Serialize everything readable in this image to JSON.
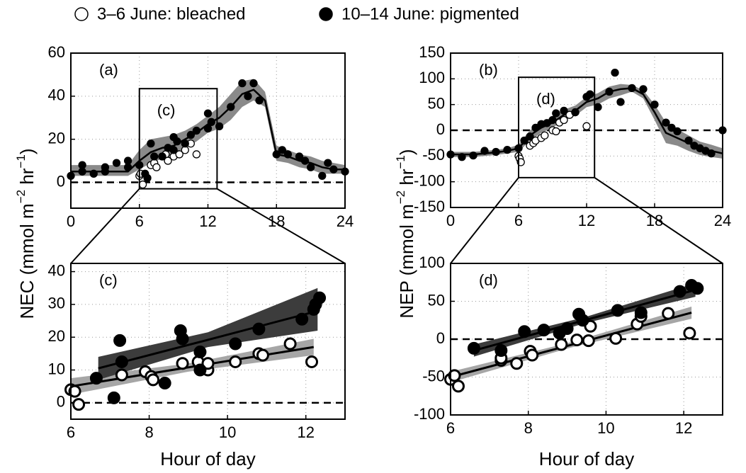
{
  "chart_data": [
    {
      "type": "scatter",
      "panel_label": "(a)",
      "ylabel": [
        "NEC (mmol m",
        "−2",
        " hr",
        "−1",
        ")"
      ],
      "xlim": [
        0,
        24
      ],
      "ylim": [
        -12,
        60
      ],
      "xticks": [
        0,
        6,
        12,
        18,
        24
      ],
      "yticks": [
        0,
        20,
        40,
        60
      ],
      "grid": true,
      "zero_line": true,
      "series": [
        {
          "name": "3–6 June: bleached",
          "color": "#ffffff",
          "marker": "open",
          "x": [
            6,
            6.1,
            6.3,
            7,
            7.3,
            7.5,
            8,
            8.3,
            8.5,
            9,
            9.5,
            10,
            10.5,
            11
          ],
          "values": [
            3,
            4,
            -1,
            8,
            9,
            7,
            12,
            13,
            10,
            12,
            13,
            15,
            18,
            13
          ]
        },
        {
          "name": "10–14 June: pigmented",
          "color": "#000000",
          "marker": "filled",
          "x": [
            0,
            1,
            1,
            2,
            3,
            3,
            4,
            5,
            5,
            6,
            6.5,
            6.7,
            7,
            7.3,
            8,
            8.5,
            9,
            9,
            9.3,
            10,
            10.5,
            11,
            12,
            12,
            12.3,
            13,
            14,
            15,
            15.5,
            16,
            16.5,
            18,
            18.5,
            19,
            20,
            20.5,
            21,
            22,
            22.5,
            23,
            24
          ],
          "values": [
            3,
            8,
            5,
            4,
            7,
            5,
            9,
            10,
            7,
            8,
            4,
            2,
            18,
            12,
            12,
            16,
            15,
            21,
            19,
            18,
            22,
            24,
            32,
            25,
            28,
            26,
            35,
            46,
            40,
            46,
            38,
            13,
            15,
            13,
            12,
            10,
            7,
            3,
            9,
            6,
            5
          ]
        }
      ],
      "fit": [
        {
          "color": "#000000",
          "band_color": "#8a8a8a",
          "x": [
            0,
            2,
            4,
            5,
            6,
            7,
            8,
            9,
            10,
            11,
            12,
            13,
            14,
            15,
            16,
            17,
            18,
            19,
            20,
            21,
            22,
            23,
            24
          ],
          "values": [
            5,
            5,
            5,
            5,
            10,
            14,
            16,
            17,
            20,
            23,
            27,
            30,
            35,
            41,
            43,
            38,
            13,
            12,
            10,
            9,
            7,
            6,
            6
          ],
          "lower": [
            3,
            3,
            3,
            3,
            6,
            9,
            11,
            13,
            16,
            19,
            23,
            25,
            29,
            35,
            38,
            35,
            10,
            9,
            7,
            6,
            4,
            4,
            4
          ],
          "upper": [
            8,
            8,
            8,
            8,
            15,
            20,
            21,
            22,
            24,
            27,
            31,
            35,
            41,
            47,
            48,
            42,
            17,
            15,
            13,
            12,
            10,
            9,
            8
          ]
        }
      ],
      "zoom_box": {
        "x": [
          6,
          12.8
        ],
        "y": [
          -3,
          43.5
        ],
        "label": "(c)"
      }
    },
    {
      "type": "scatter",
      "panel_label": "(b)",
      "ylabel": [
        "NEP (mmol m",
        "−2",
        " hr",
        "−1",
        ")"
      ],
      "xlim": [
        0,
        24
      ],
      "ylim": [
        -150,
        150
      ],
      "xticks": [
        0,
        6,
        12,
        18,
        24
      ],
      "yticks": [
        -150,
        -100,
        -50,
        0,
        50,
        100,
        150
      ],
      "grid": true,
      "zero_line": true,
      "series": [
        {
          "color": "#ffffff",
          "marker": "open",
          "x": [
            6,
            6.1,
            6.2,
            7,
            7.3,
            7.5,
            8,
            8.3,
            9,
            9.3,
            9.6,
            10,
            10.5,
            11,
            12
          ],
          "values": [
            -50,
            -55,
            -62,
            -30,
            -25,
            -20,
            -15,
            -10,
            0,
            -2,
            15,
            20,
            30,
            35,
            8
          ]
        },
        {
          "color": "#000000",
          "marker": "filled",
          "x": [
            0,
            1,
            2,
            3,
            4,
            5,
            6,
            6.5,
            7,
            7.5,
            8,
            8.5,
            9,
            9.3,
            10,
            11,
            12,
            12.3,
            13,
            14,
            14.5,
            15,
            16,
            17,
            18,
            19,
            19.5,
            20,
            21,
            21.5,
            22,
            22.5,
            23,
            24
          ],
          "values": [
            -47,
            -52,
            -49,
            -40,
            -42,
            -38,
            -35,
            -20,
            -12,
            5,
            12,
            14,
            20,
            33,
            38,
            35,
            65,
            70,
            45,
            75,
            112,
            55,
            82,
            80,
            50,
            15,
            5,
            -2,
            -20,
            -30,
            -35,
            -40,
            -45,
            0
          ]
        }
      ],
      "fit": [
        {
          "color": "#000000",
          "band_color": "#8a8a8a",
          "x": [
            0,
            2,
            4,
            5,
            6,
            7,
            8,
            9,
            10,
            11,
            12,
            13,
            14,
            15,
            16,
            17,
            18,
            19,
            20,
            21,
            22,
            23,
            24
          ],
          "values": [
            -47,
            -47,
            -43,
            -40,
            -35,
            -10,
            5,
            15,
            30,
            38,
            55,
            62,
            75,
            80,
            82,
            70,
            35,
            -5,
            -15,
            -25,
            -35,
            -40,
            -45
          ],
          "lower": [
            -52,
            -52,
            -48,
            -45,
            -42,
            -20,
            -5,
            5,
            20,
            28,
            45,
            50,
            62,
            68,
            75,
            62,
            20,
            -25,
            -30,
            -40,
            -48,
            -52,
            -55
          ],
          "upper": [
            -42,
            -42,
            -38,
            -35,
            -28,
            0,
            15,
            25,
            40,
            48,
            65,
            72,
            85,
            90,
            88,
            78,
            50,
            15,
            2,
            -10,
            -22,
            -28,
            -35
          ]
        }
      ],
      "zoom_box": {
        "x": [
          6,
          12.7
        ],
        "y": [
          -92,
          103
        ],
        "label": "(d)"
      }
    },
    {
      "type": "scatter",
      "panel_label": "(c)",
      "xlabel": "Hour of day",
      "xlim": [
        6,
        13
      ],
      "ylim": [
        -5,
        42.5
      ],
      "xticks": [
        6,
        8,
        10,
        12
      ],
      "yticks": [
        0,
        10,
        20,
        30,
        40
      ],
      "grid": true,
      "zero_line": true,
      "series": [
        {
          "color": "#ffffff",
          "marker": "open",
          "x": [
            6.0,
            6.1,
            6.2,
            7.3,
            7.9,
            8.05,
            8.1,
            8.85,
            9.25,
            9.5,
            9.5,
            10.2,
            10.8,
            10.9,
            11.6,
            12.15
          ],
          "values": [
            4,
            3.5,
            -0.5,
            8.5,
            9.5,
            8,
            7,
            12,
            12.5,
            10,
            12,
            12.5,
            15,
            14.5,
            18,
            12.5
          ]
        },
        {
          "color": "#000000",
          "marker": "filled",
          "x": [
            6.65,
            7.1,
            7.25,
            7.3,
            8.4,
            8.8,
            8.85,
            9.3,
            9.3,
            10.2,
            10.8,
            11.9,
            12.2,
            12.25,
            12.35
          ],
          "values": [
            7.5,
            1.5,
            19,
            12.5,
            6,
            22,
            19.5,
            10,
            15.5,
            18,
            22.5,
            25.5,
            28.5,
            30,
            32
          ]
        }
      ],
      "fit": [
        {
          "color": "#000000",
          "band_color": "#a6a6a6",
          "x": [
            6,
            9,
            12.2
          ],
          "values": [
            5,
            10.8,
            17
          ],
          "lower": [
            2.5,
            9.5,
            14.5
          ],
          "upper": [
            7.5,
            12,
            19.5
          ]
        },
        {
          "color": "#000000",
          "band_color": "#3c3c3c",
          "x": [
            6.7,
            9.5,
            12.3
          ],
          "values": [
            10.5,
            19.2,
            28
          ],
          "lower": [
            7,
            17,
            22
          ],
          "upper": [
            14,
            21.5,
            35
          ]
        }
      ]
    },
    {
      "type": "scatter",
      "panel_label": "(d)",
      "xlabel": "Hour of day",
      "xlim": [
        6,
        13
      ],
      "ylim": [
        -100,
        100
      ],
      "xticks": [
        6,
        8,
        10,
        12
      ],
      "yticks": [
        -100,
        -50,
        0,
        50,
        100
      ],
      "grid": true,
      "zero_line": true,
      "series": [
        {
          "color": "#ffffff",
          "marker": "open",
          "x": [
            6.0,
            6.1,
            6.2,
            7.3,
            7.3,
            7.7,
            8.05,
            8.1,
            8.85,
            9.25,
            9.6,
            9.55,
            10.25,
            10.8,
            10.9,
            11.6,
            12.15
          ],
          "values": [
            -53,
            -48,
            -62,
            -28,
            -25,
            -32,
            -16,
            -21,
            -7,
            -1,
            17,
            -2,
            1,
            20,
            30,
            34,
            8
          ]
        },
        {
          "color": "#000000",
          "marker": "filled",
          "x": [
            6.6,
            7.3,
            7.9,
            8.4,
            8.8,
            9.0,
            9.3,
            9.4,
            10.3,
            10.9,
            11.9,
            12.2,
            12.35
          ],
          "values": [
            -12,
            -15,
            10,
            12,
            8,
            14,
            33,
            25,
            38,
            35,
            63,
            71,
            67
          ]
        }
      ],
      "fit": [
        {
          "color": "#000000",
          "band_color": "#a6a6a6",
          "x": [
            6,
            9.1,
            12.2
          ],
          "values": [
            -50,
            -7.5,
            35
          ],
          "lower": [
            -57,
            -11,
            27
          ],
          "upper": [
            -43,
            -4,
            43
          ]
        },
        {
          "color": "#000000",
          "band_color": "#3c3c3c",
          "x": [
            6.6,
            9.45,
            12.3
          ],
          "values": [
            -15,
            25,
            65
          ],
          "lower": [
            -23,
            21,
            56
          ],
          "upper": [
            -7,
            29,
            74
          ]
        }
      ]
    }
  ]
}
